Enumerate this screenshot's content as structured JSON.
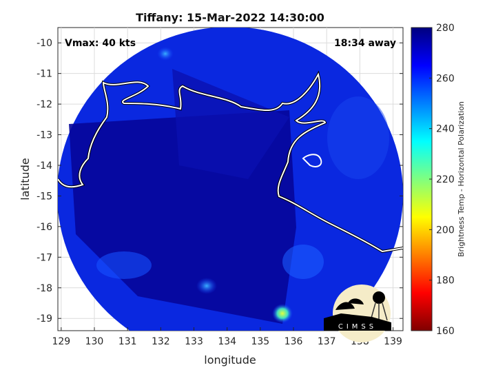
{
  "title": "Tiffany: 15-Mar-2022 14:30:00",
  "annotations": {
    "vmax": "Vmax: 40 kts",
    "time_away": "18:34 away"
  },
  "map": {
    "type": "satellite-swath",
    "xlabel": "longitude",
    "ylabel": "latitude",
    "xlim": [
      128.9,
      139.3
    ],
    "ylim": [
      -19.4,
      -9.5
    ],
    "xticks": [
      "129",
      "130",
      "131",
      "132",
      "133",
      "134",
      "135",
      "136",
      "137",
      "138",
      "139"
    ],
    "yticks": [
      "-10",
      "-11",
      "-12",
      "-13",
      "-14",
      "-15",
      "-16",
      "-17",
      "-18",
      "-19"
    ],
    "grid": true,
    "coastline_color": "#ffffff"
  },
  "colorbar": {
    "label": "Brightness Temp - Horizontal Polarization",
    "range": [
      160,
      280
    ],
    "ticks": [
      "280",
      "260",
      "240",
      "220",
      "200",
      "180",
      "160"
    ],
    "colormap": "jet"
  },
  "logo": {
    "text": "CIMSS"
  }
}
